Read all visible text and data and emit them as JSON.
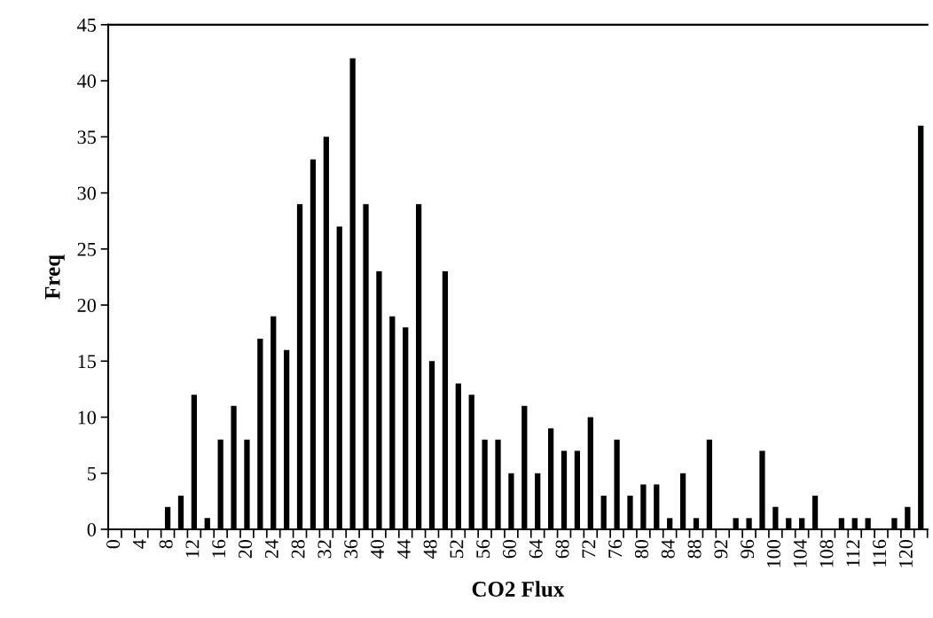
{
  "chart_data": {
    "type": "bar",
    "xlabel": "CO2 Flux",
    "ylabel": "Freq",
    "categories": [
      "0",
      null,
      "4",
      null,
      "8",
      null,
      "12",
      null,
      "16",
      null,
      "20",
      null,
      "24",
      null,
      "28",
      null,
      "32",
      null,
      "36",
      null,
      "40",
      null,
      "44",
      null,
      "48",
      null,
      "52",
      null,
      "56",
      null,
      "60",
      null,
      "64",
      null,
      "68",
      null,
      "72",
      null,
      "76",
      null,
      "80",
      null,
      "84",
      null,
      "88",
      null,
      "92",
      null,
      "96",
      null,
      "100",
      null,
      "104",
      null,
      "108",
      null,
      "112",
      null,
      "116",
      null,
      "120",
      null
    ],
    "values": [
      0,
      0,
      0,
      0,
      2,
      3,
      12,
      1,
      8,
      11,
      8,
      17,
      19,
      16,
      29,
      33,
      35,
      27,
      42,
      29,
      23,
      19,
      18,
      29,
      15,
      23,
      13,
      12,
      8,
      8,
      5,
      11,
      5,
      9,
      7,
      7,
      10,
      3,
      8,
      3,
      4,
      4,
      1,
      5,
      1,
      8,
      0,
      1,
      1,
      7,
      2,
      1,
      1,
      3,
      0,
      1,
      1,
      1,
      0,
      1,
      2,
      36
    ],
    "color": "#000000",
    "ylim": [
      0,
      45
    ],
    "yticks": [
      0,
      5,
      10,
      15,
      20,
      25,
      30,
      35,
      40,
      45
    ],
    "grid": false
  }
}
